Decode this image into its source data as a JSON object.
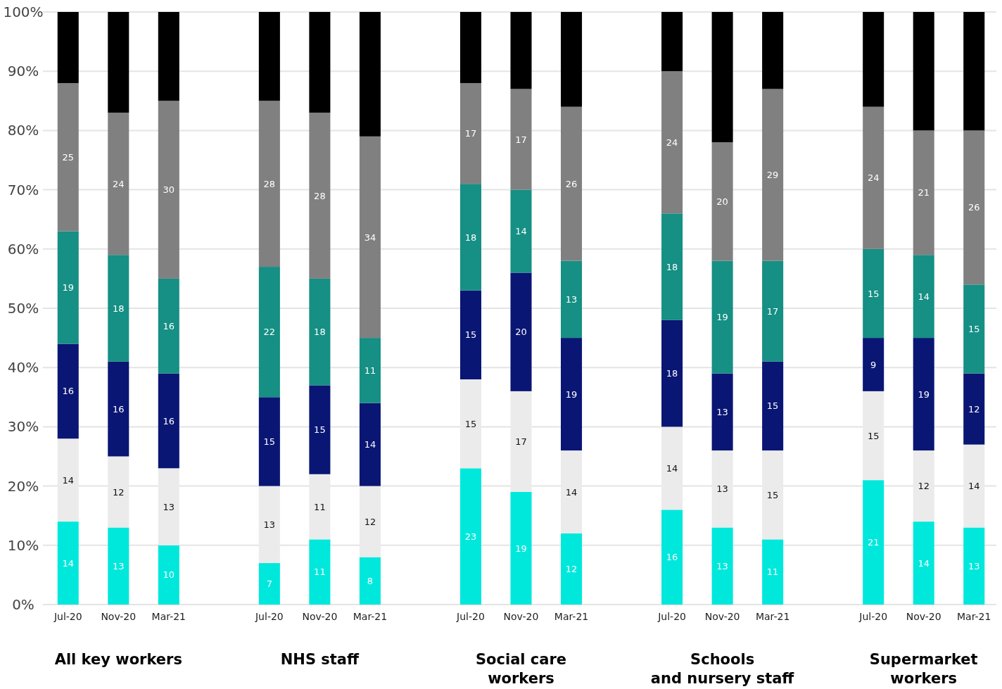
{
  "chart_data": {
    "type": "bar",
    "stacked": true,
    "categories": [
      "Jul-20",
      "Nov-20",
      "Mar-21",
      null,
      "Jul-20",
      "Nov-20",
      "Mar-21",
      null,
      "Jul-20",
      "Nov-20",
      "Mar-21",
      null,
      "Jul-20",
      "Nov-20",
      "Mar-21",
      null,
      "Jul-20",
      "Nov-20",
      "Mar-21"
    ],
    "series": [
      {
        "color": "#00e8dc",
        "values": [
          14,
          13,
          10,
          null,
          7,
          11,
          8,
          null,
          23,
          19,
          12,
          null,
          16,
          13,
          11,
          null,
          21,
          14,
          13
        ],
        "value_labels": [
          "14",
          "13",
          "10",
          null,
          "7",
          "11",
          "8",
          null,
          "23",
          "19",
          "12",
          null,
          "16",
          "13",
          "11",
          null,
          "21",
          "14",
          "13"
        ]
      },
      {
        "color": "#ebebeb",
        "values": [
          14,
          12,
          13,
          null,
          13,
          11,
          12,
          null,
          15,
          17,
          14,
          null,
          14,
          13,
          15,
          null,
          15,
          12,
          14
        ],
        "value_labels": [
          "14",
          "12",
          "13",
          null,
          "13",
          "11",
          "12",
          null,
          "15",
          "17",
          "14",
          null,
          "14",
          "13",
          "15",
          null,
          "15",
          "12",
          "14"
        ]
      },
      {
        "color": "#0a1674",
        "values": [
          16,
          16,
          16,
          null,
          15,
          15,
          14,
          null,
          15,
          20,
          19,
          null,
          18,
          13,
          15,
          null,
          9,
          19,
          12
        ],
        "value_labels": [
          "16",
          "16",
          "16",
          null,
          "15",
          "15",
          "14",
          null,
          "15",
          "20",
          "19",
          null,
          "18",
          "13",
          "15",
          null,
          "9",
          "19",
          "12"
        ]
      },
      {
        "color": "#168f84",
        "values": [
          19,
          18,
          16,
          null,
          22,
          18,
          11,
          null,
          18,
          14,
          13,
          null,
          18,
          19,
          17,
          null,
          15,
          14,
          15
        ],
        "value_labels": [
          "19",
          "18",
          "16",
          null,
          "22",
          "18",
          "11",
          null,
          "18",
          "14",
          "13",
          null,
          "18",
          "19",
          "17",
          null,
          "15",
          "14",
          "15"
        ]
      },
      {
        "color": "#808080",
        "values": [
          25,
          24,
          30,
          null,
          28,
          28,
          34,
          null,
          17,
          17,
          26,
          null,
          24,
          20,
          29,
          null,
          24,
          21,
          26
        ],
        "value_labels": [
          "25",
          "24",
          "30",
          null,
          "28",
          "28",
          "34",
          null,
          "17",
          "17",
          "26",
          null,
          "24",
          "20",
          "29",
          null,
          "24",
          "21",
          "26"
        ]
      },
      {
        "color": "#000000",
        "values": [
          12,
          17,
          15,
          null,
          15,
          17,
          21,
          null,
          12,
          13,
          16,
          null,
          10,
          22,
          13,
          null,
          16,
          20,
          20
        ]
      }
    ],
    "ylim": [
      0,
      100
    ],
    "yticks": [
      {
        "value": 0,
        "label": "0%"
      },
      {
        "value": 10,
        "label": "10%"
      },
      {
        "value": 20,
        "label": "20%"
      },
      {
        "value": 30,
        "label": "30%"
      },
      {
        "value": 40,
        "label": "40%"
      },
      {
        "value": 50,
        "label": "50%"
      },
      {
        "value": 60,
        "label": "60%"
      },
      {
        "value": 70,
        "label": "70%"
      },
      {
        "value": 80,
        "label": "80%"
      },
      {
        "value": 90,
        "label": "90%"
      },
      {
        "value": 100,
        "label": "100%"
      }
    ],
    "grid": "y",
    "annotations": [
      "All key workers",
      "NHS staff",
      "Social care\nworkers",
      "Schools\nand nursery staff",
      "Supermarket\nworkers"
    ]
  }
}
